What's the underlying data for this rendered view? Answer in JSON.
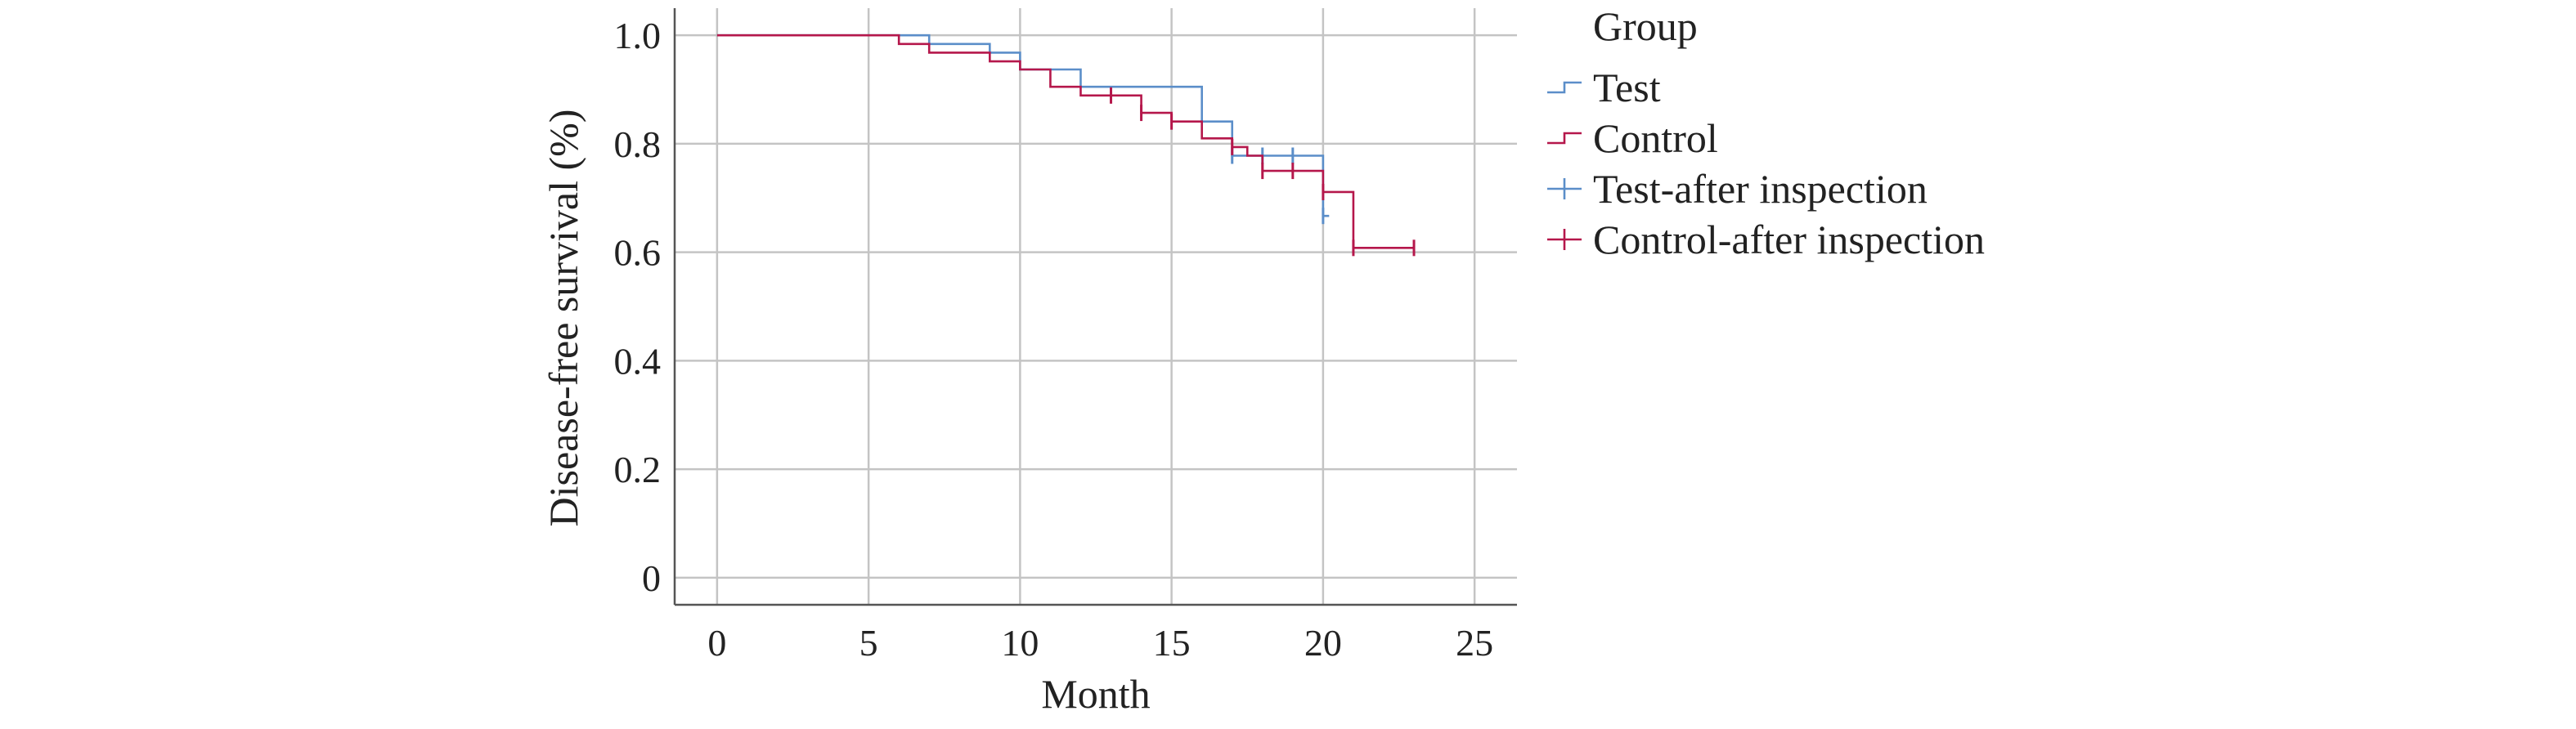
{
  "chart_data": {
    "type": "line",
    "subtype": "kaplan-meier-step",
    "title": "",
    "xlabel": "Month",
    "ylabel": "Disease-free survival (%)",
    "xlim": [
      -1.4,
      26.4
    ],
    "ylim": [
      -0.05,
      1.05
    ],
    "x_ticks": [
      0,
      5,
      10,
      15,
      20,
      25
    ],
    "x_tick_labels": [
      "0",
      "5",
      "10",
      "15",
      "20",
      "25"
    ],
    "y_ticks": [
      0,
      0.2,
      0.4,
      0.6,
      0.8,
      1.0
    ],
    "y_tick_labels": [
      "0",
      "0.2",
      "0.4",
      "0.6",
      "0.8",
      "1.0"
    ],
    "grid": true,
    "legend": {
      "title": "Group",
      "placement": "right",
      "entries": [
        {
          "label": "Test",
          "kind": "step",
          "color": "#5b8ec9"
        },
        {
          "label": "Control",
          "kind": "step",
          "color": "#b5174b"
        },
        {
          "label": "Test-after inspection",
          "kind": "censor",
          "color": "#5b8ec9"
        },
        {
          "label": "Control-after inspection",
          "kind": "censor",
          "color": "#b5174b"
        }
      ]
    },
    "series": [
      {
        "name": "Test",
        "color": "#5b8ec9",
        "steps": [
          [
            0,
            1.0
          ],
          [
            7,
            0.984
          ],
          [
            9,
            0.968
          ],
          [
            10,
            0.937
          ],
          [
            12,
            0.905
          ],
          [
            16,
            0.841
          ],
          [
            17,
            0.778
          ],
          [
            20,
            0.667
          ],
          [
            20.2,
            0.667
          ]
        ],
        "censored": [
          [
            17,
            0.778
          ],
          [
            18,
            0.778
          ],
          [
            19,
            0.778
          ],
          [
            20,
            0.667
          ]
        ]
      },
      {
        "name": "Control",
        "color": "#b5174b",
        "steps": [
          [
            0,
            1.0
          ],
          [
            6,
            0.984
          ],
          [
            7,
            0.968
          ],
          [
            9,
            0.952
          ],
          [
            10,
            0.937
          ],
          [
            11,
            0.905
          ],
          [
            12,
            0.889
          ],
          [
            14,
            0.857
          ],
          [
            15,
            0.841
          ],
          [
            16,
            0.81
          ],
          [
            17,
            0.794
          ],
          [
            17.5,
            0.778
          ],
          [
            18,
            0.75
          ],
          [
            20,
            0.711
          ],
          [
            21,
            0.608
          ],
          [
            23,
            0.608
          ]
        ],
        "censored": [
          [
            13,
            0.889
          ],
          [
            14,
            0.857
          ],
          [
            15,
            0.841
          ],
          [
            17,
            0.794
          ],
          [
            18,
            0.75
          ],
          [
            19,
            0.75
          ],
          [
            20,
            0.711
          ],
          [
            21,
            0.608
          ],
          [
            23,
            0.608
          ]
        ]
      }
    ]
  }
}
